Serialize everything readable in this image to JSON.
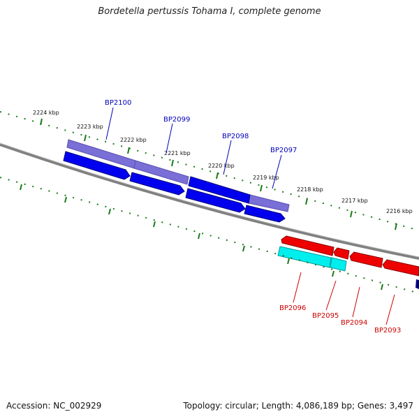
{
  "title": "Bordetella pertussis Tohama I, complete genome",
  "footer": {
    "accession": "Accession: NC_002929",
    "summary": "Topology: circular; Length: 4,086,189 bp; Genes: 3,497"
  },
  "ticks": [
    "2224 kbp",
    "2223 kbp",
    "2222 kbp",
    "2221 kbp",
    "2220 kbp",
    "2219 kbp",
    "2218 kbp",
    "2217 kbp",
    "2216 kbp"
  ],
  "genes_top": [
    "BP2100",
    "BP2099",
    "BP2098",
    "BP2097"
  ],
  "genes_bottom": [
    "BP2096",
    "BP2095",
    "BP2094",
    "BP2093"
  ],
  "colors": {
    "forward_gene": "#0000ee",
    "forward_feature": "#7a6fd6",
    "reverse_gene": "#ee0000",
    "reverse_feature": "#00eeee",
    "backbone": "#808080",
    "tick": "#1a7a1a",
    "label_top": "#0000bb",
    "label_bottom": "#cc0000"
  }
}
